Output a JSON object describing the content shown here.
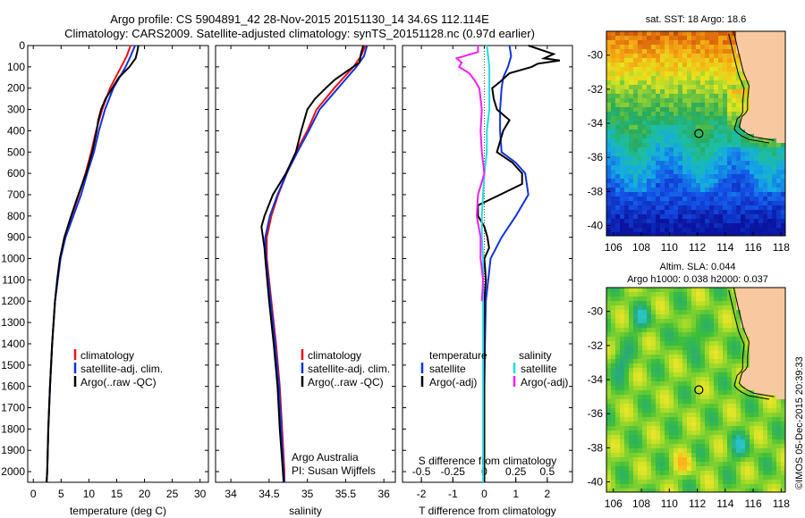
{
  "header": {
    "title_line1": "Argo profile: CS 5904891_42 28-Nov-2015 20151130_14 34.6S 112.114E",
    "title_line2": "Climatology: CARS2009. Satellite-adjusted climatology: synTS_20151128.nc (0.97d earlier)"
  },
  "colors": {
    "climatology": "#ee1111",
    "satellite": "#1133dd",
    "argo": "#000000",
    "sal_satellite": "#22dddd",
    "sal_argo": "#ee22ee",
    "land": "#f8c8a0"
  },
  "stamp": "©IMOS 05-Dec-2015 20:39:33",
  "chart_data": [
    {
      "type": "line",
      "id": "temperature",
      "xlabel": "temperature (deg C)",
      "ylabel": "",
      "xlim": [
        -1,
        31.5
      ],
      "ylim": [
        2050,
        0
      ],
      "x_ticks": [
        0,
        5,
        10,
        15,
        20,
        25,
        30
      ],
      "y_ticks": [
        0,
        100,
        200,
        300,
        400,
        500,
        600,
        700,
        800,
        900,
        1000,
        1100,
        1200,
        1300,
        1400,
        1500,
        1600,
        1700,
        1800,
        1900,
        2000
      ],
      "legend": [
        "climatology",
        "satellite-adj. clim.",
        "Argo(..raw -QC)"
      ],
      "legend_position": "lower-right",
      "series": [
        {
          "name": "climatology",
          "color_key": "climatology",
          "depth": [
            0,
            50,
            100,
            200,
            300,
            400,
            500,
            600,
            700,
            800,
            900,
            1000,
            1200,
            1400,
            1600,
            1800,
            2000,
            2050
          ],
          "values": [
            17.5,
            16.8,
            15.8,
            13.8,
            12.4,
            11.3,
            10.4,
            9.4,
            8.2,
            6.9,
            5.6,
            4.8,
            3.9,
            3.4,
            3.0,
            2.7,
            2.5,
            2.4
          ]
        },
        {
          "name": "satellite-adj. clim.",
          "color_key": "satellite",
          "depth": [
            0,
            50,
            100,
            200,
            300,
            400,
            500,
            600,
            700,
            800,
            900,
            1000,
            1200,
            1400,
            1600,
            1800,
            2000,
            2050
          ],
          "values": [
            18.3,
            17.5,
            16.6,
            14.4,
            12.9,
            11.8,
            10.9,
            9.7,
            8.6,
            7.2,
            5.8,
            4.9,
            3.9,
            3.4,
            3.0,
            2.7,
            2.5,
            2.4
          ]
        },
        {
          "name": "Argo(..raw -QC)",
          "color_key": "argo",
          "depth": [
            0,
            30,
            60,
            100,
            150,
            200,
            250,
            300,
            350,
            400,
            500,
            600,
            700,
            800,
            900,
            1000,
            1100,
            1200,
            1400,
            1600,
            1800,
            2000,
            2050
          ],
          "values": [
            18.9,
            18.7,
            18.4,
            17.3,
            15.4,
            14.2,
            13.0,
            12.2,
            11.7,
            11.4,
            10.6,
            9.5,
            8.1,
            6.8,
            5.6,
            4.8,
            4.3,
            3.9,
            3.4,
            3.0,
            2.7,
            2.5,
            2.4
          ]
        }
      ]
    },
    {
      "type": "line",
      "id": "salinity",
      "xlabel": "salinity",
      "ylabel": "",
      "xlim": [
        33.8,
        36.15
      ],
      "ylim": [
        2050,
        0
      ],
      "x_ticks": [
        34,
        34.5,
        35,
        35.5,
        36
      ],
      "legend": [
        "climatology",
        "satellite-adj. clim.",
        "Argo(..raw -QC)"
      ],
      "legend_position": "lower-right",
      "annotation": [
        "Argo Australia",
        "PI: Susan Wijffels"
      ],
      "series": [
        {
          "name": "climatology",
          "color_key": "climatology",
          "depth": [
            0,
            50,
            100,
            200,
            300,
            400,
            500,
            600,
            700,
            800,
            900,
            1000,
            1200,
            1400,
            1600,
            1800,
            2000,
            2050
          ],
          "values": [
            35.76,
            35.7,
            35.6,
            35.35,
            35.12,
            35.0,
            34.85,
            34.73,
            34.62,
            34.53,
            34.47,
            34.47,
            34.53,
            34.59,
            34.64,
            34.67,
            34.7,
            34.7
          ]
        },
        {
          "name": "satellite-adj. clim.",
          "color_key": "satellite",
          "depth": [
            0,
            50,
            100,
            200,
            300,
            400,
            500,
            600,
            700,
            800,
            900,
            1000,
            1200,
            1400,
            1600,
            1800,
            2000,
            2050
          ],
          "values": [
            35.78,
            35.74,
            35.64,
            35.4,
            35.16,
            35.02,
            34.87,
            34.73,
            34.61,
            34.51,
            34.45,
            34.46,
            34.52,
            34.58,
            34.63,
            34.66,
            34.69,
            34.7
          ]
        },
        {
          "name": "Argo(..raw -QC)",
          "color_key": "argo",
          "depth": [
            0,
            40,
            80,
            120,
            160,
            200,
            250,
            300,
            400,
            500,
            600,
            700,
            800,
            850,
            900,
            950,
            1000,
            1200,
            1400,
            1600,
            1800,
            2000,
            2050
          ],
          "values": [
            35.73,
            35.7,
            35.68,
            35.52,
            35.36,
            35.24,
            35.1,
            35.0,
            34.92,
            34.85,
            34.72,
            34.55,
            34.44,
            34.4,
            34.42,
            34.44,
            34.45,
            34.5,
            34.56,
            34.61,
            34.64,
            34.68,
            34.69
          ]
        }
      ]
    },
    {
      "type": "line",
      "id": "differences",
      "xlabel": "T difference from climatology",
      "x2label": "S difference from climatology",
      "xlim": [
        -2.6,
        2.8
      ],
      "x_ticks": [
        -2,
        -1,
        0,
        1,
        2
      ],
      "x2lim": [
        -0.65,
        0.7
      ],
      "x2_ticks": [
        -0.5,
        -0.25,
        0,
        0.25,
        0.5
      ],
      "x2_ticklabels": [
        "-0.5",
        "-0.25",
        "0",
        "0.25",
        "0.5"
      ],
      "ylim": [
        2050,
        0
      ],
      "legend_temperature_title": "temperature",
      "legend_salinity_title": "salinity",
      "legend_temperature": [
        "satellite",
        "Argo(-adj)"
      ],
      "legend_salinity": [
        "satellite",
        "Argo(-adj)"
      ],
      "series": [
        {
          "name": "T satellite",
          "axis": "T",
          "color_key": "satellite",
          "depth": [
            0,
            50,
            100,
            150,
            200,
            300,
            400,
            500,
            550,
            600,
            700,
            800,
            900,
            1000,
            1200,
            1400,
            1600,
            2050
          ],
          "values": [
            0.8,
            0.85,
            0.75,
            0.6,
            0.55,
            0.5,
            0.5,
            0.55,
            1.0,
            1.3,
            1.4,
            1.0,
            0.55,
            0.2,
            0.05,
            0.02,
            0.0,
            0.0
          ]
        },
        {
          "name": "T Argo(-adj)",
          "axis": "T",
          "color_key": "argo",
          "depth": [
            0,
            20,
            40,
            60,
            70,
            85,
            100,
            130,
            170,
            200,
            250,
            300,
            350,
            400,
            450,
            500,
            550,
            600,
            650,
            700,
            750,
            800,
            850,
            900,
            950,
            1000,
            1100,
            1200,
            1400,
            1600,
            2050
          ],
          "values": [
            1.4,
            1.8,
            2.2,
            1.9,
            2.4,
            1.7,
            1.5,
            0.8,
            0.5,
            0.25,
            0.3,
            0.4,
            0.8,
            0.6,
            0.5,
            0.4,
            0.9,
            1.2,
            1.2,
            0.5,
            -0.2,
            -0.2,
            0.0,
            0.1,
            0.15,
            0.0,
            0.05,
            0.0,
            0.0,
            0.0,
            0.0
          ]
        },
        {
          "name": "S satellite",
          "axis": "S",
          "color_key": "sal_satellite",
          "depth": [
            0,
            50,
            100,
            200,
            300,
            400,
            500,
            600,
            700,
            800,
            900,
            1000,
            1200,
            1400,
            1600,
            2050
          ],
          "values": [
            0.02,
            0.03,
            0.04,
            0.04,
            0.04,
            0.02,
            0.02,
            0.0,
            -0.01,
            -0.02,
            -0.02,
            -0.01,
            -0.01,
            -0.01,
            -0.01,
            -0.01
          ]
        },
        {
          "name": "S Argo(-adj)",
          "axis": "S",
          "color_key": "sal_argo",
          "depth": [
            0,
            30,
            60,
            80,
            100,
            130,
            160,
            200,
            300,
            400,
            500,
            600,
            700,
            800,
            900,
            1000,
            1100,
            1200
          ],
          "values": [
            -0.05,
            -0.05,
            -0.22,
            -0.18,
            -0.2,
            -0.12,
            -0.08,
            -0.04,
            -0.02,
            -0.03,
            -0.02,
            0.0,
            -0.05,
            -0.06,
            -0.03,
            -0.03,
            -0.01,
            -0.02
          ]
        }
      ]
    },
    {
      "type": "heatmap",
      "id": "sst_map",
      "title": "sat. SST: 18 Argo: 18.6",
      "x_ticks": [
        106,
        108,
        110,
        112,
        114,
        116,
        118
      ],
      "y_ticks": [
        -30,
        -32,
        -34,
        -36,
        -38,
        -40
      ],
      "xlim": [
        105.5,
        118.3
      ],
      "ylim": [
        -40.6,
        -28.6
      ],
      "marker": {
        "lon": 112.114,
        "lat": -34.6
      }
    },
    {
      "type": "heatmap",
      "id": "sla_map",
      "title_line1": "Altim. SLA: 0.044",
      "title_line2": "Argo h1000: 0.038 h2000: 0.037",
      "x_ticks": [
        106,
        108,
        110,
        112,
        114,
        116,
        118
      ],
      "y_ticks": [
        -30,
        -32,
        -34,
        -36,
        -38,
        -40
      ],
      "xlim": [
        105.5,
        118.3
      ],
      "ylim": [
        -40.6,
        -28.6
      ],
      "marker": {
        "lon": 112.114,
        "lat": -34.6
      }
    }
  ]
}
